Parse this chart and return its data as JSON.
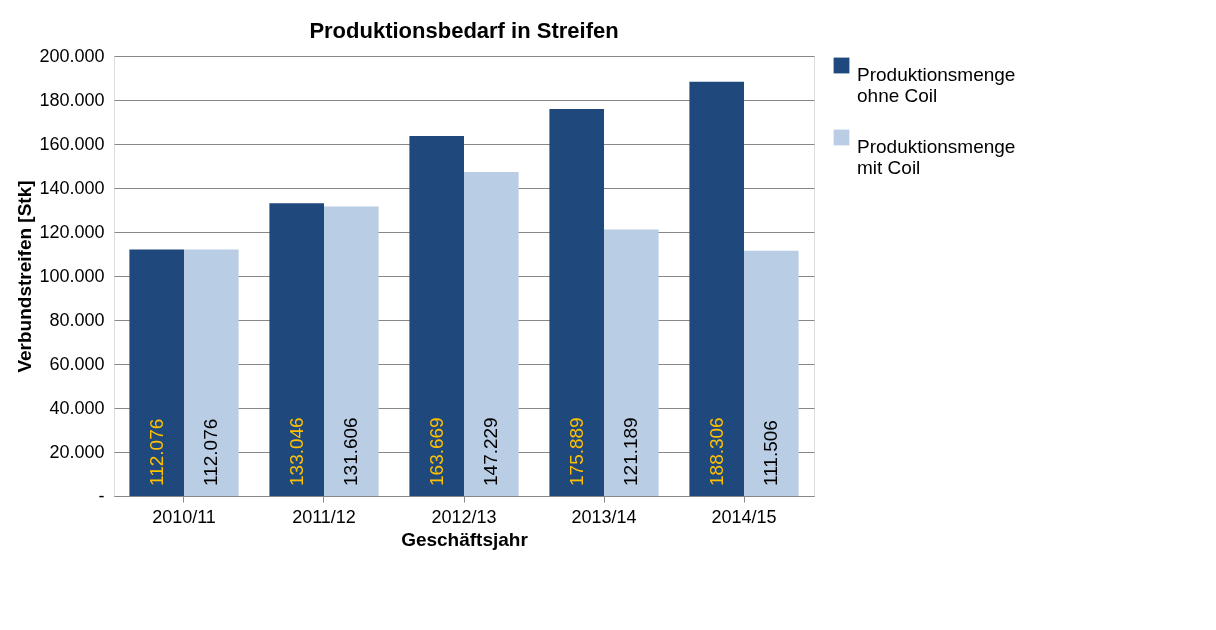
{
  "chart_data": {
    "type": "bar",
    "title": "Produktionsbedarf in Streifen",
    "xlabel": "Geschäftsjahr",
    "ylabel": "Verbundstreifen [Stk]",
    "categories": [
      "2010/11",
      "2011/12",
      "2012/13",
      "2013/14",
      "2014/15"
    ],
    "series": [
      {
        "name": "Produktionsmenge ohne Coil",
        "color": "#1f497d",
        "values": [
          112076,
          133046,
          163669,
          175889,
          188306
        ],
        "value_labels": [
          "112.076",
          "133.046",
          "163.669",
          "175.889",
          "188.306"
        ]
      },
      {
        "name": "Produktionsmenge mit Coil",
        "color": "#b9cde5",
        "values": [
          112076,
          131606,
          147229,
          121189,
          111506
        ],
        "value_labels": [
          "112.076",
          "131.606",
          "147.229",
          "121.189",
          "111.506"
        ]
      }
    ],
    "ylim": [
      0,
      200000
    ],
    "yticks": [
      {
        "value": 0,
        "label": "-"
      },
      {
        "value": 20000,
        "label": "20.000"
      },
      {
        "value": 40000,
        "label": "40.000"
      },
      {
        "value": 60000,
        "label": "60.000"
      },
      {
        "value": 80000,
        "label": "80.000"
      },
      {
        "value": 100000,
        "label": "100.000"
      },
      {
        "value": 120000,
        "label": "120.000"
      },
      {
        "value": 140000,
        "label": "140.000"
      },
      {
        "value": 160000,
        "label": "160.000"
      },
      {
        "value": 180000,
        "label": "180.000"
      },
      {
        "value": 200000,
        "label": "200.000"
      }
    ],
    "grid": "y",
    "legend": "right"
  }
}
